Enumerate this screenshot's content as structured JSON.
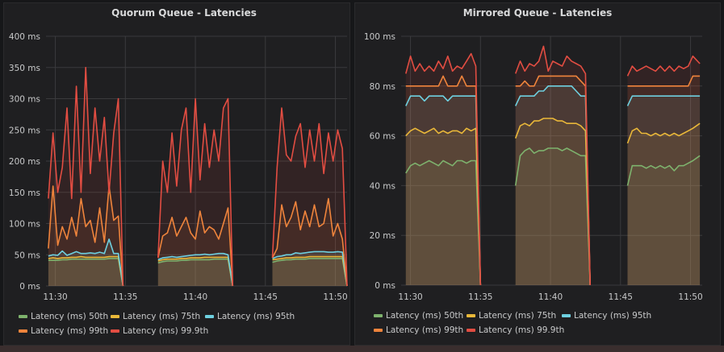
{
  "chart_data": [
    {
      "type": "line",
      "title": "Quorum Queue - Latencies",
      "ylim": [
        0,
        400
      ],
      "y_ticks": [
        "0 ms",
        "50 ms",
        "100 ms",
        "150 ms",
        "200 ms",
        "250 ms",
        "300 ms",
        "350 ms",
        "400 ms"
      ],
      "y_tick_values": [
        0,
        50,
        100,
        150,
        200,
        250,
        300,
        350,
        400
      ],
      "x_ticks": [
        "11:30",
        "11:35",
        "11:40",
        "11:45",
        "11:50"
      ],
      "xlim": [
        "11:29:20",
        "11:50:50"
      ],
      "grid": true,
      "fill": true,
      "legend_placement": "bottom",
      "x": [
        "11:29:30",
        "11:29:50",
        "11:30:10",
        "11:30:30",
        "11:30:50",
        "11:31:10",
        "11:31:30",
        "11:31:50",
        "11:32:10",
        "11:32:30",
        "11:32:50",
        "11:33:10",
        "11:33:30",
        "11:33:50",
        "11:34:10",
        "11:34:30",
        "11:34:50",
        "11:36:00",
        "11:37:20",
        "11:37:40",
        "11:38:00",
        "11:38:20",
        "11:38:40",
        "11:39:00",
        "11:39:20",
        "11:39:40",
        "11:40:00",
        "11:40:20",
        "11:40:40",
        "11:41:00",
        "11:41:20",
        "11:41:40",
        "11:42:00",
        "11:42:20",
        "11:42:40",
        "11:44:00",
        "11:45:30",
        "11:45:50",
        "11:46:10",
        "11:46:30",
        "11:46:50",
        "11:47:10",
        "11:47:30",
        "11:47:50",
        "11:48:10",
        "11:48:30",
        "11:48:50",
        "11:49:10",
        "11:49:30",
        "11:49:50",
        "11:50:10",
        "11:50:30",
        "11:50:50"
      ],
      "series": [
        {
          "name": "Latency (ms) 50th",
          "color": "#7eb26d",
          "values": [
            41,
            41,
            41,
            42,
            42,
            43,
            43,
            43,
            43,
            43,
            43,
            43,
            43,
            44,
            44,
            44,
            0,
            null,
            37,
            39,
            40,
            40,
            40,
            41,
            41,
            42,
            42,
            42,
            42,
            42,
            43,
            43,
            43,
            43,
            0,
            null,
            38,
            40,
            41,
            42,
            42,
            43,
            43,
            43,
            44,
            44,
            44,
            44,
            44,
            44,
            44,
            44,
            0
          ]
        },
        {
          "name": "Latency (ms) 75th",
          "color": "#eab839",
          "values": [
            44,
            45,
            44,
            45,
            45,
            46,
            46,
            47,
            46,
            46,
            46,
            46,
            46,
            47,
            47,
            47,
            0,
            null,
            40,
            42,
            43,
            43,
            43,
            44,
            44,
            45,
            45,
            45,
            46,
            46,
            46,
            46,
            46,
            46,
            0,
            null,
            42,
            43,
            44,
            45,
            45,
            46,
            46,
            46,
            47,
            47,
            47,
            47,
            47,
            47,
            47,
            47,
            0
          ]
        },
        {
          "name": "Latency (ms) 95th",
          "color": "#6ed0e0",
          "values": [
            48,
            50,
            49,
            56,
            49,
            52,
            55,
            52,
            52,
            53,
            52,
            54,
            52,
            75,
            52,
            52,
            0,
            null,
            42,
            45,
            46,
            47,
            46,
            47,
            48,
            49,
            50,
            50,
            51,
            50,
            51,
            52,
            52,
            50,
            0,
            null,
            44,
            47,
            48,
            50,
            50,
            53,
            52,
            53,
            54,
            55,
            55,
            55,
            54,
            54,
            55,
            54,
            0
          ]
        },
        {
          "name": "Latency (ms) 99th",
          "color": "#ef843c",
          "values": [
            60,
            160,
            65,
            95,
            75,
            110,
            80,
            140,
            95,
            105,
            70,
            125,
            70,
            160,
            105,
            112,
            0,
            null,
            45,
            80,
            85,
            110,
            80,
            95,
            110,
            85,
            75,
            120,
            85,
            95,
            90,
            75,
            100,
            125,
            0,
            null,
            45,
            60,
            130,
            95,
            110,
            135,
            90,
            120,
            95,
            130,
            95,
            100,
            140,
            80,
            100,
            75,
            0
          ]
        },
        {
          "name": "Latency (ms) 99.9th",
          "color": "#e24d42",
          "values": [
            140,
            245,
            150,
            190,
            285,
            140,
            320,
            150,
            350,
            180,
            285,
            200,
            270,
            150,
            245,
            300,
            0,
            null,
            45,
            200,
            150,
            245,
            160,
            250,
            285,
            150,
            300,
            170,
            260,
            190,
            250,
            200,
            285,
            300,
            0,
            null,
            45,
            190,
            285,
            210,
            200,
            240,
            260,
            190,
            250,
            200,
            260,
            180,
            245,
            200,
            250,
            220,
            0
          ]
        }
      ]
    },
    {
      "type": "line",
      "title": "Mirrored Queue - Latencies",
      "ylim": [
        0,
        100
      ],
      "y_ticks": [
        "0 ms",
        "20 ms",
        "40 ms",
        "60 ms",
        "80 ms",
        "100 ms"
      ],
      "y_tick_values": [
        0,
        20,
        40,
        60,
        80,
        100
      ],
      "x_ticks": [
        "11:30",
        "11:35",
        "11:40",
        "11:45",
        "11:50"
      ],
      "xlim": [
        "11:29:20",
        "11:50:50"
      ],
      "grid": true,
      "fill": true,
      "legend_placement": "bottom",
      "x": [
        "11:29:40",
        "11:30:00",
        "11:30:20",
        "11:30:40",
        "11:31:00",
        "11:31:20",
        "11:31:40",
        "11:32:00",
        "11:32:20",
        "11:32:40",
        "11:33:00",
        "11:33:20",
        "11:33:40",
        "11:34:00",
        "11:34:20",
        "11:34:40",
        "11:35:00",
        "11:36:00",
        "11:37:30",
        "11:37:50",
        "11:38:10",
        "11:38:30",
        "11:38:50",
        "11:39:10",
        "11:39:30",
        "11:39:50",
        "11:40:10",
        "11:40:30",
        "11:40:50",
        "11:41:10",
        "11:41:30",
        "11:41:50",
        "11:42:10",
        "11:42:30",
        "11:42:50",
        "11:44:00",
        "11:45:30",
        "11:45:50",
        "11:46:10",
        "11:46:30",
        "11:46:50",
        "11:47:10",
        "11:47:30",
        "11:47:50",
        "11:48:10",
        "11:48:30",
        "11:48:50",
        "11:49:10",
        "11:49:30",
        "11:49:50",
        "11:50:10",
        "11:50:40"
      ],
      "series": [
        {
          "name": "Latency (ms) 50th",
          "color": "#7eb26d",
          "values": [
            45,
            48,
            49,
            48,
            49,
            50,
            49,
            48,
            50,
            49,
            48,
            50,
            50,
            49,
            50,
            50,
            0,
            null,
            40,
            52,
            54,
            55,
            53,
            54,
            54,
            55,
            55,
            55,
            54,
            55,
            54,
            53,
            52,
            52,
            0,
            null,
            40,
            48,
            48,
            48,
            47,
            48,
            47,
            48,
            47,
            48,
            46,
            48,
            48,
            49,
            50,
            52
          ]
        },
        {
          "name": "Latency (ms) 75th",
          "color": "#eab839",
          "values": [
            60,
            62,
            63,
            62,
            61,
            62,
            63,
            61,
            62,
            61,
            62,
            62,
            61,
            63,
            62,
            63,
            0,
            null,
            59,
            64,
            65,
            64,
            66,
            66,
            67,
            67,
            67,
            66,
            66,
            65,
            65,
            65,
            64,
            62,
            0,
            null,
            57,
            62,
            63,
            61,
            61,
            60,
            61,
            60,
            61,
            60,
            61,
            60,
            61,
            62,
            63,
            65
          ]
        },
        {
          "name": "Latency (ms) 95th",
          "color": "#6ed0e0",
          "values": [
            72,
            76,
            76,
            76,
            74,
            76,
            76,
            76,
            76,
            74,
            76,
            76,
            76,
            76,
            76,
            76,
            0,
            null,
            72,
            76,
            76,
            76,
            76,
            78,
            78,
            80,
            80,
            80,
            80,
            80,
            80,
            78,
            76,
            76,
            0,
            null,
            72,
            76,
            76,
            76,
            76,
            76,
            76,
            76,
            76,
            76,
            76,
            76,
            76,
            76,
            76,
            76
          ]
        },
        {
          "name": "Latency (ms) 99th",
          "color": "#ef843c",
          "values": [
            80,
            80,
            80,
            80,
            80,
            80,
            80,
            80,
            84,
            80,
            80,
            80,
            84,
            80,
            80,
            80,
            0,
            null,
            80,
            80,
            82,
            80,
            80,
            84,
            84,
            84,
            84,
            84,
            84,
            84,
            84,
            84,
            82,
            80,
            0,
            null,
            80,
            80,
            80,
            80,
            80,
            80,
            80,
            80,
            80,
            80,
            80,
            80,
            80,
            80,
            84,
            84
          ]
        },
        {
          "name": "Latency (ms) 99.9th",
          "color": "#e24d42",
          "values": [
            85,
            92,
            86,
            89,
            86,
            88,
            86,
            90,
            87,
            92,
            86,
            88,
            87,
            90,
            93,
            88,
            0,
            null,
            85,
            90,
            86,
            89,
            88,
            90,
            96,
            86,
            90,
            89,
            88,
            92,
            90,
            89,
            88,
            85,
            0,
            null,
            84,
            88,
            86,
            87,
            88,
            87,
            86,
            88,
            86,
            88,
            86,
            88,
            87,
            88,
            92,
            89
          ]
        }
      ]
    }
  ]
}
